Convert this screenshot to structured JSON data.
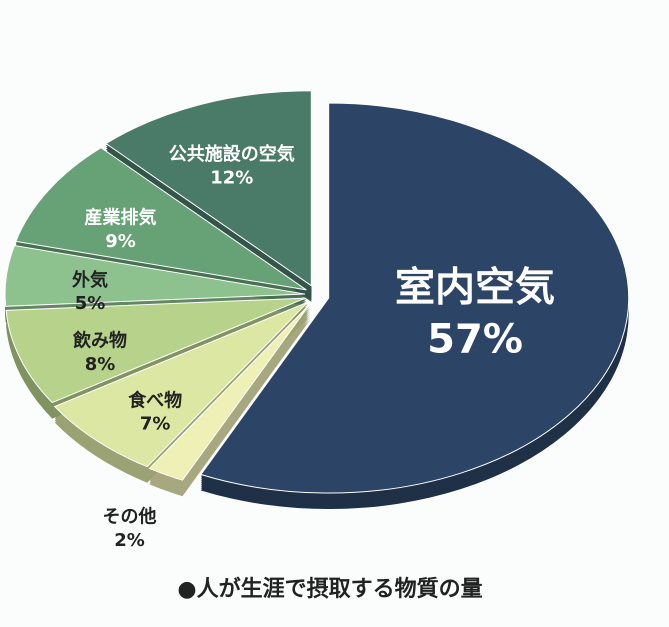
{
  "chart_data": {
    "type": "pie",
    "title": "●人が生涯で摂取する物質の量",
    "categories": [
      "室内空気",
      "その他",
      "食べ物",
      "飲み物",
      "外気",
      "産業排気",
      "公共施設の空気"
    ],
    "values": [
      57,
      2,
      7,
      8,
      5,
      9,
      12
    ],
    "value_labels": [
      "57%",
      "2%",
      "7%",
      "8%",
      "5%",
      "9%",
      "12%"
    ],
    "colors": [
      "#2c4465",
      "#eef0b6",
      "#dde7a4",
      "#b7d28a",
      "#8dc18e",
      "#67a276",
      "#4a7a68"
    ]
  }
}
